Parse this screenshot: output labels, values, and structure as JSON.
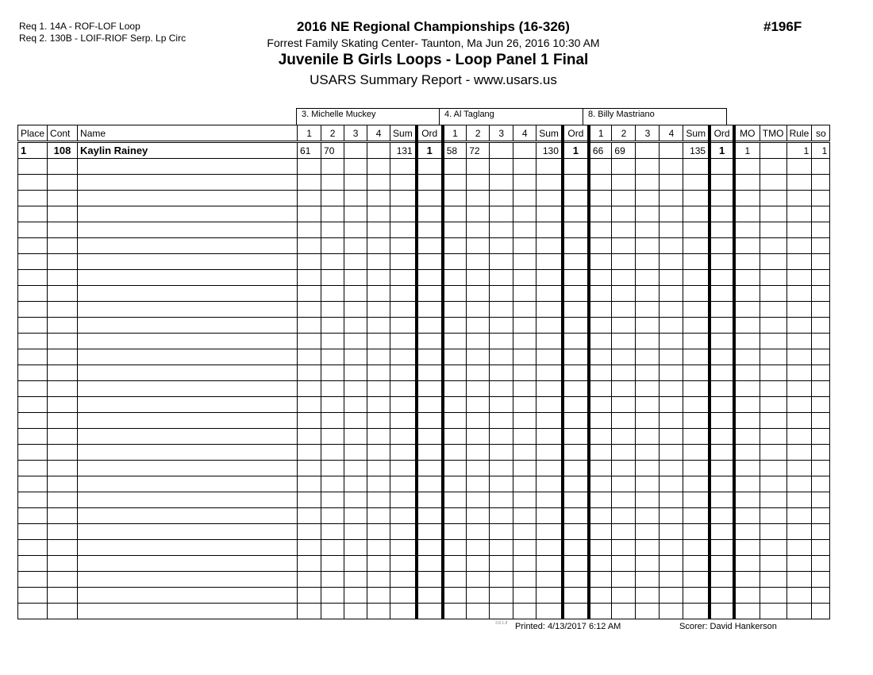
{
  "requirements": [
    "Req  1.  14A - ROF-LOF Loop",
    "Req  2.  130B - LOIF-RIOF Serp. Lp Circ"
  ],
  "header": {
    "title": "2016 NE Regional Championships (16-326)",
    "venue": "Forrest Family Skating Center- Taunton, Ma  Jun 26, 2016  10:30 AM",
    "event": "Juvenile B Girls Loops - Loop Panel 1 Final",
    "report": "USARS Summary Report - www.usars.us",
    "event_number": "#196F"
  },
  "judges": [
    "3.  Michelle Muckey",
    "4.  Al Taglang",
    "8.  Billy Mastriano"
  ],
  "columns": {
    "place": "Place",
    "cont": "Cont",
    "name": "Name",
    "scores": [
      "1",
      "2",
      "3",
      "4"
    ],
    "sum": "Sum",
    "ord": "Ord",
    "mo": "MO",
    "tmo": "TMO",
    "rule": "Rule",
    "so": "so"
  },
  "rows": [
    {
      "place": "1",
      "cont": "108",
      "name": "Kaylin Rainey",
      "judges": [
        {
          "scores": [
            "61",
            "70",
            "",
            ""
          ],
          "sum": "131",
          "ord": "1"
        },
        {
          "scores": [
            "58",
            "72",
            "",
            ""
          ],
          "sum": "130",
          "ord": "1"
        },
        {
          "scores": [
            "66",
            "69",
            "",
            ""
          ],
          "sum": "135",
          "ord": "1"
        }
      ],
      "mo": "1",
      "tmo": "",
      "rule": "1",
      "so": "1"
    }
  ],
  "footer": {
    "version": "3.8.1.8",
    "printed": "Printed:  4/13/2017  6:12 AM",
    "scorer": "Scorer:    David Hankerson"
  }
}
